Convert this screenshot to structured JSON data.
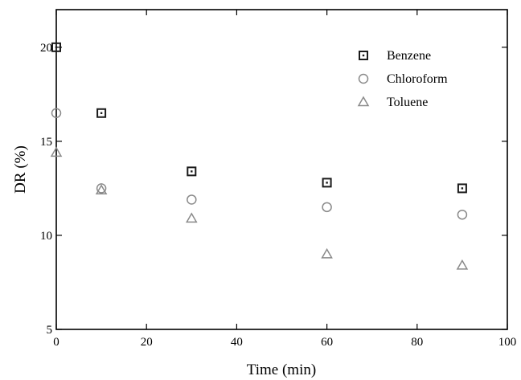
{
  "chart_data": {
    "type": "scatter",
    "title": "",
    "xlabel": "Time (min)",
    "ylabel": "DR (%)",
    "xlim": [
      0,
      100
    ],
    "ylim": [
      5,
      22
    ],
    "xticks": [
      0,
      20,
      40,
      60,
      80,
      100
    ],
    "yticks": [
      5,
      10,
      15,
      20
    ],
    "grid": false,
    "legend_position": "top-right",
    "x": [
      0,
      10,
      30,
      60,
      90
    ],
    "series": [
      {
        "name": "Benzene",
        "marker": "square",
        "color": "#1a1a1a",
        "values": [
          20.0,
          16.5,
          13.4,
          12.8,
          12.5
        ]
      },
      {
        "name": "Chloroform",
        "marker": "circle",
        "color": "#8a8a8a",
        "values": [
          16.5,
          12.5,
          11.9,
          11.5,
          11.1
        ]
      },
      {
        "name": "Toluene",
        "marker": "triangle",
        "color": "#8a8a8a",
        "values": [
          14.4,
          12.4,
          10.9,
          9.0,
          8.4
        ]
      }
    ]
  }
}
